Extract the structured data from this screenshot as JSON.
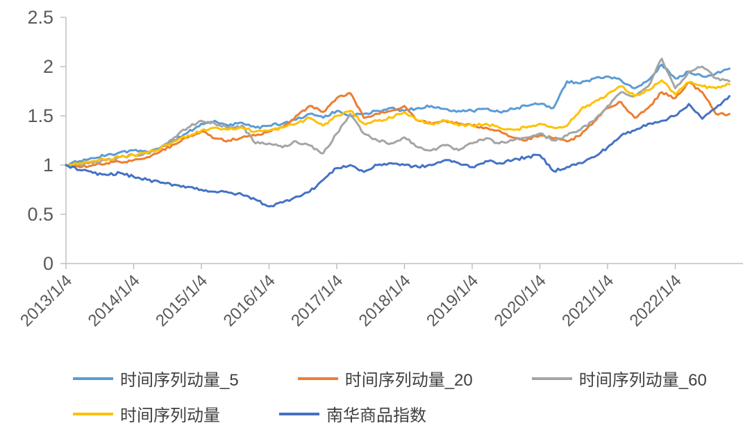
{
  "chart_data": {
    "type": "line",
    "title": "",
    "xlabel": "",
    "ylabel": "",
    "grid": false,
    "legend_position": "bottom",
    "axis_color": "#BFBFBF",
    "label_color": "#595959",
    "ylim": [
      0,
      2.5
    ],
    "y_ticks": [
      0,
      0.5,
      1,
      1.5,
      2,
      2.5
    ],
    "y_tick_labels": [
      "0",
      "0.5",
      "1",
      "1.5",
      "2",
      "2.5"
    ],
    "x_domain": [
      2013.0,
      2023.0
    ],
    "x_tick_labels": [
      "2013/1/4",
      "2014/1/4",
      "2015/1/4",
      "2016/1/4",
      "2017/1/4",
      "2018/1/4",
      "2019/1/4",
      "2020/1/4",
      "2021/1/4",
      "2022/1/4"
    ],
    "x": [
      2013.0,
      2013.2,
      2013.4,
      2013.6,
      2013.8,
      2014.0,
      2014.2,
      2014.4,
      2014.6,
      2014.8,
      2015.0,
      2015.2,
      2015.4,
      2015.6,
      2015.8,
      2016.0,
      2016.2,
      2016.4,
      2016.6,
      2016.8,
      2017.0,
      2017.2,
      2017.4,
      2017.6,
      2017.8,
      2018.0,
      2018.2,
      2018.4,
      2018.6,
      2018.8,
      2019.0,
      2019.2,
      2019.4,
      2019.6,
      2019.8,
      2020.0,
      2020.2,
      2020.4,
      2020.6,
      2020.8,
      2021.0,
      2021.2,
      2021.4,
      2021.6,
      2021.8,
      2022.0,
      2022.2,
      2022.4,
      2022.6,
      2022.8
    ],
    "series": [
      {
        "name": "时间序列动量_5",
        "color": "#5B9BD5",
        "values": [
          1.0,
          1.04,
          1.07,
          1.1,
          1.13,
          1.15,
          1.13,
          1.18,
          1.25,
          1.33,
          1.42,
          1.45,
          1.4,
          1.43,
          1.38,
          1.4,
          1.42,
          1.46,
          1.52,
          1.48,
          1.55,
          1.5,
          1.52,
          1.55,
          1.58,
          1.55,
          1.58,
          1.6,
          1.57,
          1.55,
          1.55,
          1.57,
          1.54,
          1.57,
          1.6,
          1.62,
          1.58,
          1.85,
          1.83,
          1.88,
          1.9,
          1.86,
          1.78,
          1.86,
          2.02,
          1.88,
          1.95,
          1.9,
          1.93,
          1.98
        ]
      },
      {
        "name": "时间序列动量_20",
        "color": "#ED7D31",
        "values": [
          1.0,
          0.98,
          1.0,
          1.02,
          1.03,
          1.05,
          1.08,
          1.14,
          1.21,
          1.28,
          1.34,
          1.27,
          1.25,
          1.28,
          1.3,
          1.34,
          1.38,
          1.5,
          1.6,
          1.54,
          1.68,
          1.73,
          1.48,
          1.52,
          1.55,
          1.6,
          1.45,
          1.42,
          1.45,
          1.42,
          1.4,
          1.38,
          1.35,
          1.28,
          1.25,
          1.3,
          1.27,
          1.24,
          1.3,
          1.44,
          1.58,
          1.64,
          1.48,
          1.58,
          1.74,
          1.68,
          1.84,
          1.74,
          1.52,
          1.52
        ]
      },
      {
        "name": "时间序列动量_60",
        "color": "#A5A5A5",
        "values": [
          1.0,
          1.0,
          1.02,
          1.05,
          1.08,
          1.1,
          1.12,
          1.18,
          1.28,
          1.38,
          1.45,
          1.42,
          1.38,
          1.4,
          1.22,
          1.22,
          1.18,
          1.24,
          1.2,
          1.12,
          1.32,
          1.52,
          1.32,
          1.25,
          1.22,
          1.28,
          1.18,
          1.15,
          1.2,
          1.15,
          1.22,
          1.27,
          1.22,
          1.25,
          1.28,
          1.32,
          1.25,
          1.3,
          1.36,
          1.45,
          1.6,
          1.74,
          1.7,
          1.8,
          2.08,
          1.78,
          1.95,
          2.0,
          1.88,
          1.85
        ]
      },
      {
        "name": "时间序列动量",
        "color": "#FFC000",
        "values": [
          1.0,
          1.02,
          1.04,
          1.06,
          1.08,
          1.1,
          1.12,
          1.17,
          1.24,
          1.3,
          1.35,
          1.38,
          1.36,
          1.38,
          1.34,
          1.35,
          1.38,
          1.42,
          1.48,
          1.4,
          1.5,
          1.55,
          1.42,
          1.45,
          1.48,
          1.54,
          1.45,
          1.42,
          1.45,
          1.4,
          1.4,
          1.42,
          1.38,
          1.36,
          1.38,
          1.42,
          1.38,
          1.4,
          1.56,
          1.64,
          1.72,
          1.8,
          1.7,
          1.76,
          1.86,
          1.72,
          1.84,
          1.8,
          1.78,
          1.82
        ]
      },
      {
        "name": "南华商品指数",
        "color": "#4472C4",
        "values": [
          1.0,
          0.95,
          0.92,
          0.9,
          0.92,
          0.88,
          0.85,
          0.82,
          0.8,
          0.78,
          0.75,
          0.73,
          0.72,
          0.7,
          0.65,
          0.58,
          0.62,
          0.68,
          0.73,
          0.85,
          0.97,
          1.0,
          0.93,
          1.0,
          1.02,
          1.0,
          0.98,
          1.0,
          1.05,
          1.02,
          0.98,
          1.04,
          1.02,
          1.05,
          1.08,
          1.1,
          0.94,
          0.98,
          1.02,
          1.08,
          1.18,
          1.3,
          1.35,
          1.42,
          1.45,
          1.5,
          1.62,
          1.47,
          1.58,
          1.7
        ]
      }
    ]
  }
}
